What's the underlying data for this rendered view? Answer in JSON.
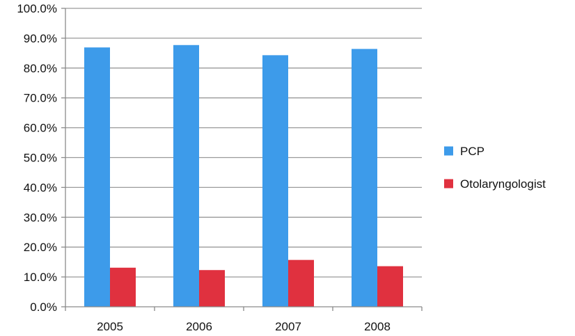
{
  "chart_data": {
    "type": "bar",
    "categories": [
      "2005",
      "2006",
      "2007",
      "2008"
    ],
    "series": [
      {
        "name": "PCP",
        "values": [
          86.9,
          87.7,
          84.3,
          86.4
        ],
        "color": "#3d9bea"
      },
      {
        "name": "Otolaryngologist",
        "values": [
          13.1,
          12.3,
          15.7,
          13.6
        ],
        "color": "#e0313f"
      }
    ],
    "ylim": [
      0,
      100
    ],
    "y_ticks": [
      "0.0%",
      "10.0%",
      "20.0%",
      "30.0%",
      "40.0%",
      "50.0%",
      "60.0%",
      "70.0%",
      "80.0%",
      "90.0%",
      "100.0%"
    ],
    "grid": true,
    "legend_position": "right",
    "title": "",
    "xlabel": "",
    "ylabel": ""
  }
}
